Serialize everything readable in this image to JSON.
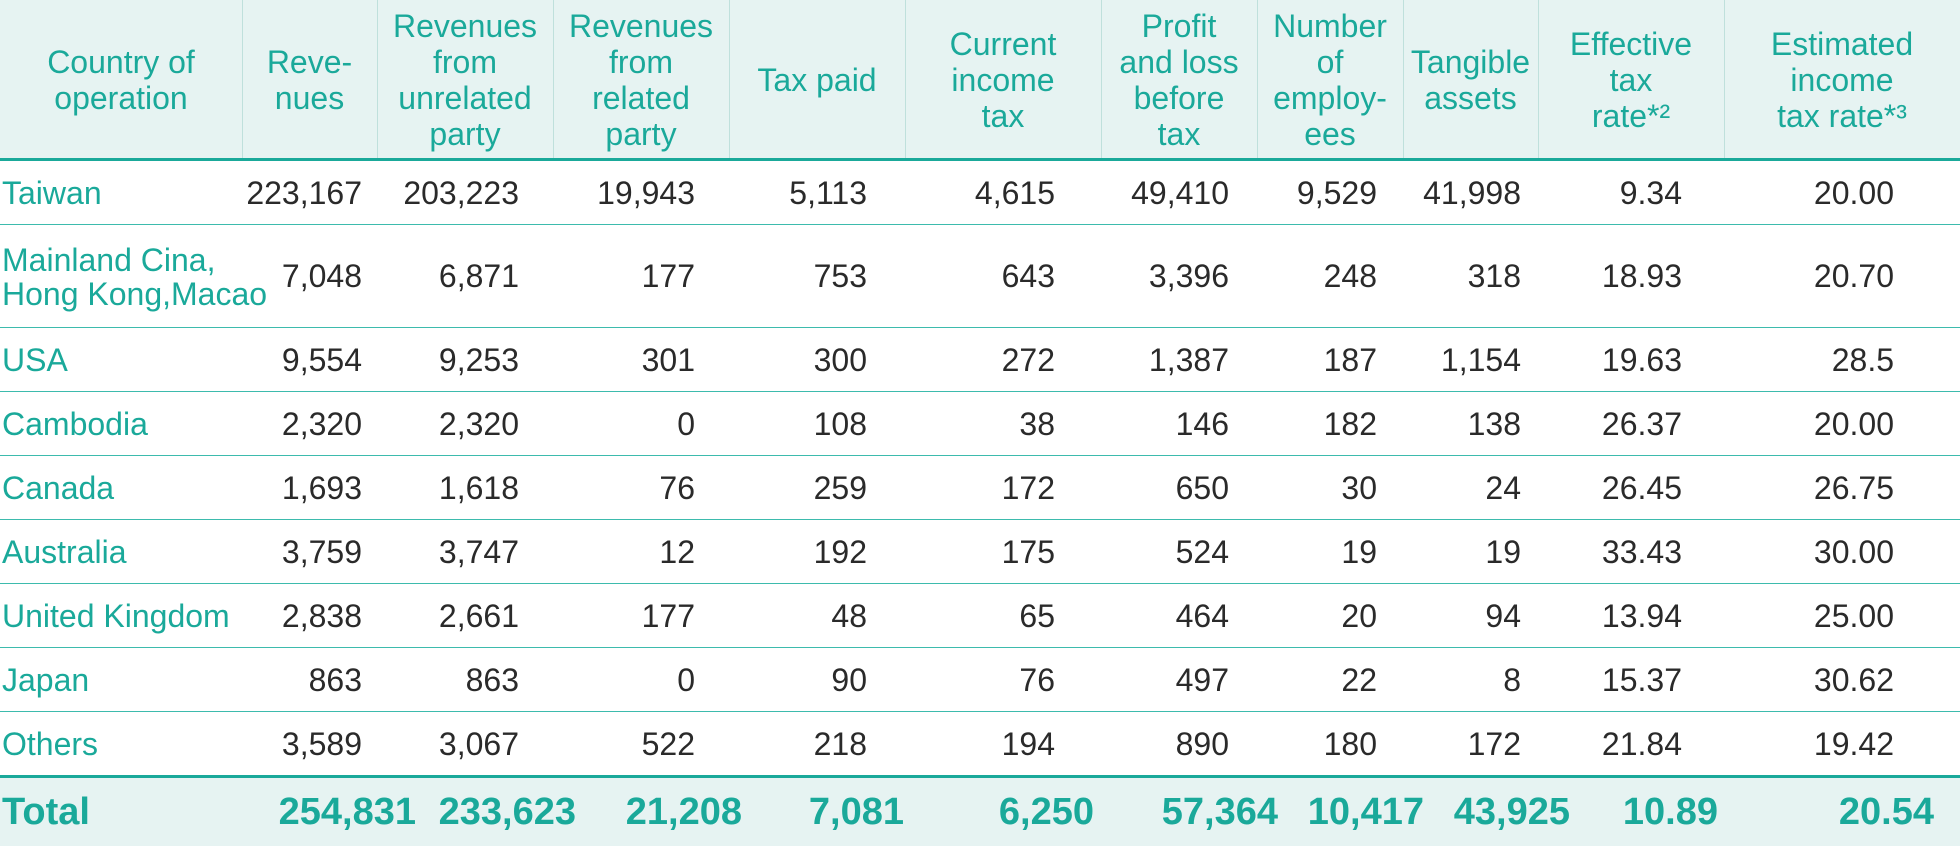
{
  "headers": [
    "Country of\noperation",
    "Reve-\nnues",
    "Revenues\nfrom\nunrelated\nparty",
    "Revenues\nfrom\nrelated\nparty",
    "Tax paid",
    "Current\nincome\ntax",
    "Profit\nand loss\nbefore\ntax",
    "Number\nof\nemploy-\nees",
    "Tangible\nassets",
    "Effective\ntax\nrate*²",
    "Estimated\nincome\ntax rate*³"
  ],
  "rows": [
    {
      "country": "Taiwan",
      "values": [
        "223,167",
        "203,223",
        "19,943",
        "5,113",
        "4,615",
        "49,410",
        "9,529",
        "41,998",
        "9.34",
        "20.00"
      ]
    },
    {
      "country": "Mainland Cina,\nHong Kong,Macao",
      "values": [
        "7,048",
        "6,871",
        "177",
        "753",
        "643",
        "3,396",
        "248",
        "318",
        "18.93",
        "20.70"
      ]
    },
    {
      "country": "USA",
      "values": [
        "9,554",
        "9,253",
        "301",
        "300",
        "272",
        "1,387",
        "187",
        "1,154",
        "19.63",
        "28.5"
      ]
    },
    {
      "country": "Cambodia",
      "values": [
        "2,320",
        "2,320",
        "0",
        "108",
        "38",
        "146",
        "182",
        "138",
        "26.37",
        "20.00"
      ]
    },
    {
      "country": "Canada",
      "values": [
        "1,693",
        "1,618",
        "76",
        "259",
        "172",
        "650",
        "30",
        "24",
        "26.45",
        "26.75"
      ]
    },
    {
      "country": "Australia",
      "values": [
        "3,759",
        "3,747",
        "12",
        "192",
        "175",
        "524",
        "19",
        "19",
        "33.43",
        "30.00"
      ]
    },
    {
      "country": "United Kingdom",
      "values": [
        "2,838",
        "2,661",
        "177",
        "48",
        "65",
        "464",
        "20",
        "94",
        "13.94",
        "25.00"
      ]
    },
    {
      "country": "Japan",
      "values": [
        "863",
        "863",
        "0",
        "90",
        "76",
        "497",
        "22",
        "8",
        "15.37",
        "30.62"
      ]
    },
    {
      "country": "Others",
      "values": [
        "3,589",
        "3,067",
        "522",
        "218",
        "194",
        "890",
        "180",
        "172",
        "21.84",
        "19.42"
      ]
    }
  ],
  "total": {
    "country": "Total",
    "values": [
      "254,831",
      "233,623",
      "21,208",
      "7,081",
      "6,250",
      "57,364",
      "10,417",
      "43,925",
      "10.89",
      "20.54"
    ]
  },
  "colors": {
    "accent": "#1aa99a",
    "header_bg": "#e6f3f2",
    "text": "#2a2a2a"
  }
}
